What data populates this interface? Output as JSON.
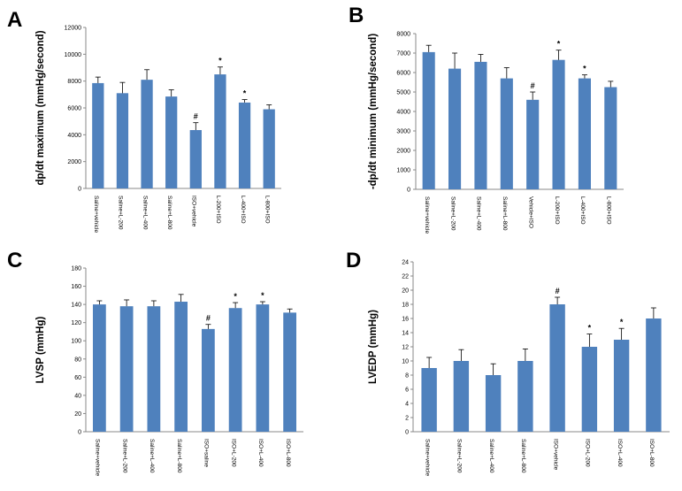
{
  "chart_data": [
    {
      "panel": "A",
      "type": "bar",
      "ylabel": "dp/dt maximum (mmHg/second)",
      "ylim": [
        0,
        12000
      ],
      "yticks": [
        0,
        2000,
        4000,
        6000,
        8000,
        10000,
        12000
      ],
      "categories": [
        "Saline+vehicle",
        "Saline+L-200",
        "Saline+L-400",
        "Saline+L-800",
        "ISO+vehicle",
        "L-200+ISO",
        "L-400+ISO",
        "L-800+ISO"
      ],
      "values": [
        7850,
        7100,
        8100,
        6850,
        4350,
        8500,
        6400,
        5900
      ],
      "errors": [
        450,
        800,
        750,
        500,
        550,
        550,
        220,
        330
      ],
      "annotations": [
        "",
        "",
        "",
        "",
        "#",
        "*",
        "*",
        ""
      ],
      "bar_color": "#4f81bd"
    },
    {
      "panel": "B",
      "type": "bar",
      "ylabel": "-dp/dt minimum (mmHg/second)",
      "ylim": [
        0,
        8000
      ],
      "yticks": [
        0,
        1000,
        2000,
        3000,
        4000,
        5000,
        6000,
        7000,
        8000
      ],
      "categories": [
        "Saline+vehicle",
        "Saline+L-200",
        "Saline+L-400",
        "Saline+L-800",
        "Vehicle+ISO",
        "L-200+ISO",
        "L-400+ISO",
        "L-800+ISO"
      ],
      "values": [
        7050,
        6200,
        6550,
        5700,
        4600,
        6650,
        5700,
        5250
      ],
      "errors": [
        350,
        800,
        380,
        550,
        400,
        500,
        180,
        300
      ],
      "annotations": [
        "",
        "",
        "",
        "",
        "#",
        "*",
        "*",
        ""
      ],
      "bar_color": "#4f81bd"
    },
    {
      "panel": "C",
      "type": "bar",
      "ylabel": "LVSP (mmHg)",
      "ylim": [
        0,
        180
      ],
      "yticks": [
        0,
        20,
        40,
        60,
        80,
        100,
        120,
        140,
        160,
        180
      ],
      "categories": [
        "Saline+vehicle",
        "Saline+L-200",
        "Saline+L-400",
        "Saline+L-800",
        "ISO+saline",
        "ISO+L-200",
        "ISO+L-400",
        "ISO+L-800"
      ],
      "values": [
        140,
        138,
        138,
        143,
        113,
        136,
        140,
        131
      ],
      "errors": [
        4,
        7,
        6,
        8,
        5,
        6,
        3,
        4
      ],
      "annotations": [
        "",
        "",
        "",
        "",
        "#",
        "*",
        "*",
        ""
      ],
      "bar_color": "#4f81bd"
    },
    {
      "panel": "D",
      "type": "bar",
      "ylabel": "LVEDP (mmHg)",
      "ylim": [
        0,
        24
      ],
      "yticks": [
        0,
        2,
        4,
        6,
        8,
        10,
        12,
        14,
        16,
        18,
        20,
        22,
        24
      ],
      "categories": [
        "Saline+vehicle",
        "Saline+L-200",
        "Saline+L-400",
        "Saline+L-800",
        "ISO+vehicle",
        "ISO+L-200",
        "ISO+L-400",
        "ISO+L-800"
      ],
      "values": [
        9,
        10,
        8,
        10,
        18,
        12,
        13,
        16
      ],
      "errors": [
        1.5,
        1.6,
        1.6,
        1.7,
        1.0,
        1.8,
        1.6,
        1.5
      ],
      "annotations": [
        "",
        "",
        "",
        "",
        "#",
        "*",
        "*",
        ""
      ],
      "bar_color": "#4f81bd"
    }
  ]
}
